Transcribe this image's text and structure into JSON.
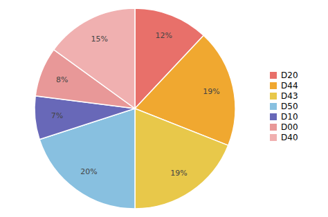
{
  "chart_data": {
    "type": "pie",
    "categories": [
      "D20",
      "D44",
      "D43",
      "D50",
      "D10",
      "D00",
      "D40"
    ],
    "values": [
      12,
      19,
      19,
      20,
      7,
      8,
      15
    ],
    "value_labels": [
      "12%",
      "19%",
      "19%",
      "20%",
      "7%",
      "8%",
      "15%"
    ],
    "colors": [
      "#e8706a",
      "#f0a830",
      "#e8c84a",
      "#88c0e0",
      "#6868b8",
      "#e89898",
      "#f0b0b0"
    ],
    "data_labels": true,
    "legend": "right"
  }
}
